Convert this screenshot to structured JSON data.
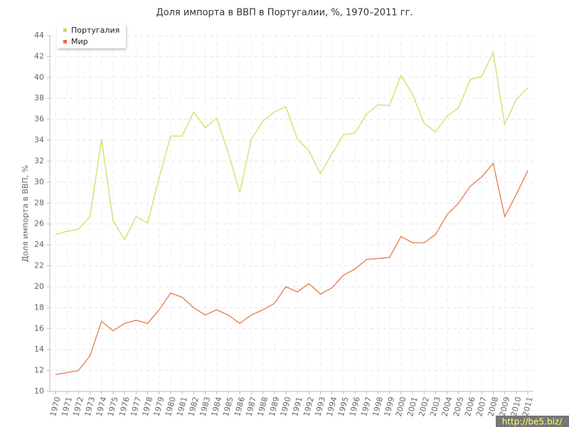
{
  "chart_data": {
    "type": "line",
    "title": "Доля импорта в ВВП в Португалии, %, 1970–2011 гг.",
    "y_label": "Доля импорта в ВВП, %",
    "categories": [
      "1970",
      "1971",
      "1972",
      "1973",
      "1974",
      "1975",
      "1976",
      "1977",
      "1978",
      "1979",
      "1980",
      "1981",
      "1982",
      "1983",
      "1984",
      "1985",
      "1986",
      "1987",
      "1988",
      "1989",
      "1990",
      "1991",
      "1992",
      "1993",
      "1994",
      "1995",
      "1996",
      "1997",
      "1998",
      "1999",
      "2000",
      "2001",
      "2002",
      "2003",
      "2004",
      "2005",
      "2006",
      "2007",
      "2008",
      "2009",
      "2010",
      "2011"
    ],
    "series": [
      {
        "name": "Португалия",
        "color": "#c5e05a",
        "values": [
          25.0,
          25.3,
          25.5,
          26.7,
          34.1,
          26.3,
          24.5,
          26.7,
          26.1,
          30.4,
          34.4,
          34.4,
          36.7,
          35.2,
          36.1,
          32.8,
          29.0,
          34.1,
          35.8,
          36.7,
          37.2,
          34.1,
          33.0,
          30.8,
          32.7,
          34.5,
          34.7,
          36.5,
          37.4,
          37.3,
          40.2,
          38.4,
          35.6,
          34.8,
          36.3,
          37.1,
          39.8,
          40.1,
          42.4,
          35.5,
          37.9,
          39.0
        ]
      },
      {
        "name": "Мир",
        "color": "#e0733e",
        "values": [
          11.6,
          11.8,
          12.0,
          13.4,
          16.7,
          15.8,
          16.5,
          16.8,
          16.5,
          17.8,
          19.4,
          19.0,
          18.0,
          17.3,
          17.8,
          17.3,
          16.5,
          17.3,
          17.8,
          18.4,
          20.0,
          19.5,
          20.3,
          19.3,
          19.9,
          21.1,
          21.7,
          22.6,
          22.7,
          22.8,
          24.8,
          24.2,
          24.2,
          25.0,
          26.9,
          28.0,
          29.6,
          30.5,
          31.8,
          26.7,
          28.8,
          31.1
        ]
      }
    ],
    "ylim": [
      10,
      44
    ],
    "yticks": [
      10,
      12,
      14,
      16,
      18,
      20,
      22,
      24,
      26,
      28,
      30,
      32,
      34,
      36,
      38,
      40,
      42,
      44
    ],
    "grid": true,
    "legend": "top-left",
    "watermark": "http://be5.biz/"
  }
}
